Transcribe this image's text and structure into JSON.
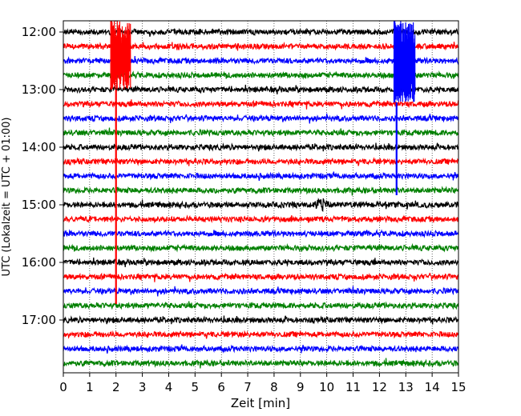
{
  "chart_data": {
    "type": "line",
    "title": "",
    "xlabel": "Zeit  [min]",
    "ylabel": "UTC (Lokalzeit = UTC + 01:00)",
    "xlim": [
      0,
      15
    ],
    "x_ticks": [
      "0",
      "1",
      "2",
      "3",
      "4",
      "5",
      "6",
      "7",
      "8",
      "9",
      "10",
      "11",
      "12",
      "13",
      "14",
      "15"
    ],
    "y_tick_labels": [
      "12:00",
      "13:00",
      "14:00",
      "15:00",
      "16:00",
      "17:00"
    ],
    "grid": "vertical dotted",
    "trace_interval_minutes": 15,
    "trace_colors": [
      "#000000",
      "#ff0000",
      "#0000ff",
      "#008000"
    ],
    "traces": [
      "12:00",
      "12:15",
      "12:30",
      "12:45",
      "13:00",
      "13:15",
      "13:30",
      "13:45",
      "14:00",
      "14:15",
      "14:30",
      "14:45",
      "15:00",
      "15:15",
      "15:30",
      "15:45",
      "16:00",
      "16:15",
      "16:30",
      "16:45",
      "17:00",
      "17:15",
      "17:30",
      "17:45"
    ],
    "events": [
      {
        "trace": "12:15",
        "x_min": 2.0,
        "color": "#ff0000"
      },
      {
        "trace": "12:30",
        "x_min": 12.7,
        "color": "#0000ff"
      },
      {
        "trace": "15:00",
        "x_min": 9.8,
        "color": "#000000"
      }
    ]
  }
}
